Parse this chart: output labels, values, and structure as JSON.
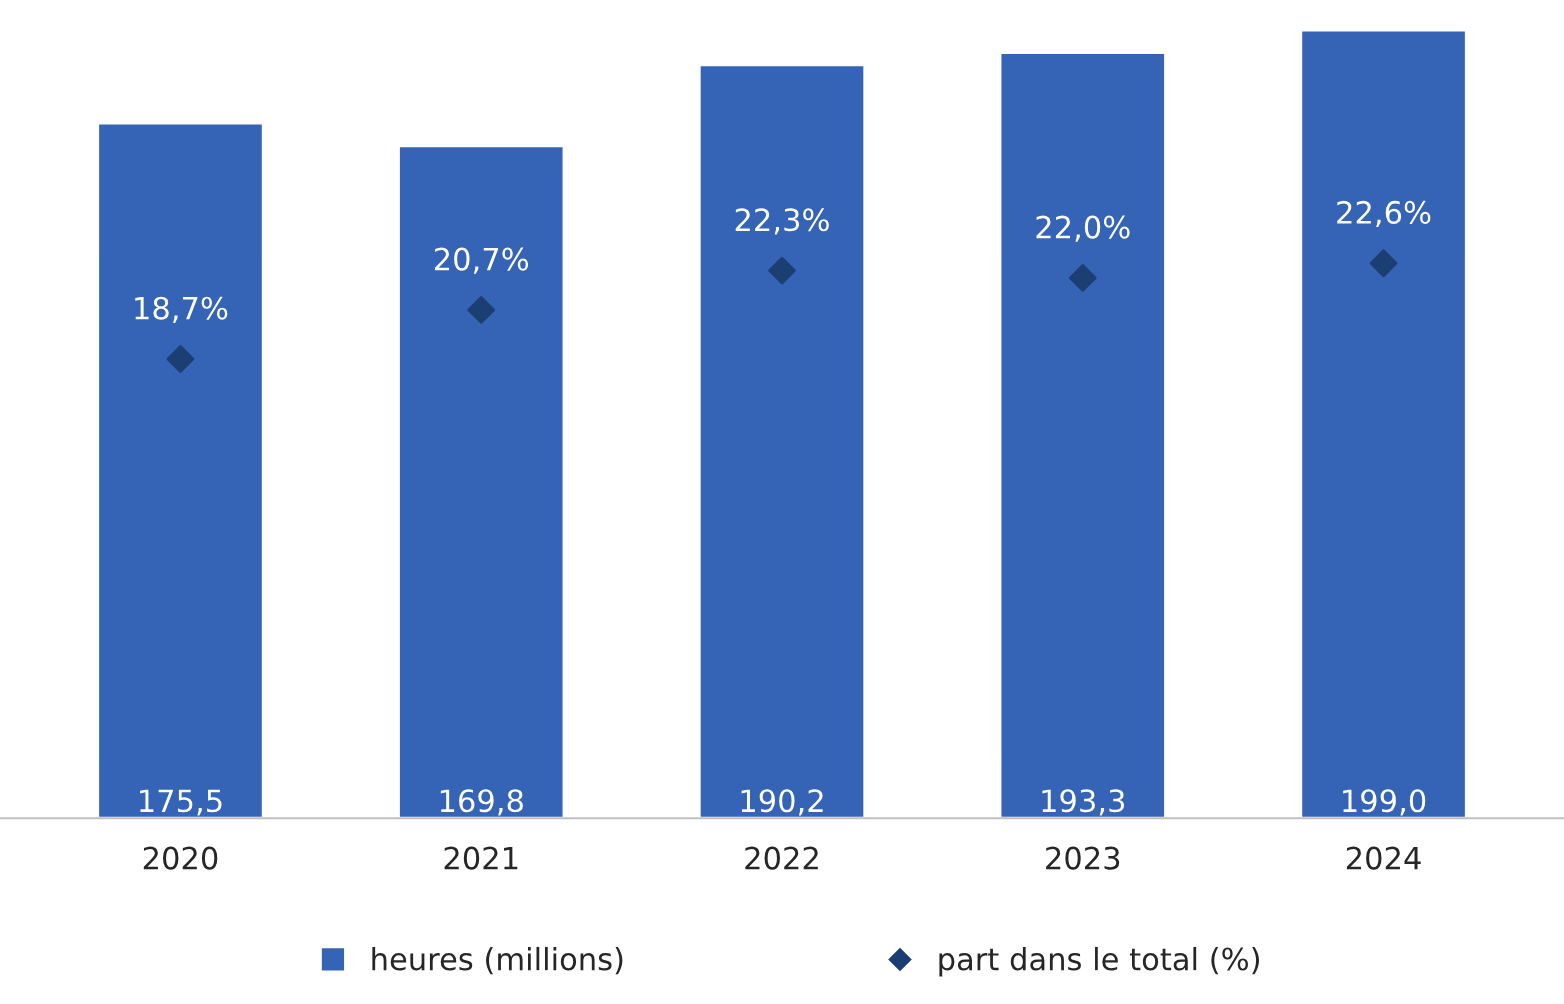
{
  "chart_data": {
    "type": "bar",
    "categories": [
      "2020",
      "2021",
      "2022",
      "2023",
      "2024"
    ],
    "series": [
      {
        "name": "heures (millions)",
        "color": "#3563b5",
        "values": [
          175.5,
          169.8,
          190.2,
          193.3,
          199.0
        ],
        "value_labels": [
          "175,5",
          "169,8",
          "190,2",
          "193,3",
          "199,0"
        ]
      },
      {
        "name": "part dans le total (%)",
        "type": "scatter",
        "axis": "y2",
        "marker": "diamond",
        "color": "#1b3f73",
        "values": [
          18.7,
          20.7,
          22.3,
          22.0,
          22.6
        ],
        "value_labels": [
          "18,7%",
          "20,7%",
          "22,3%",
          "22,0%",
          "22,6%"
        ]
      }
    ],
    "legend": "bottom",
    "grid": false,
    "tick_labels": "x"
  }
}
